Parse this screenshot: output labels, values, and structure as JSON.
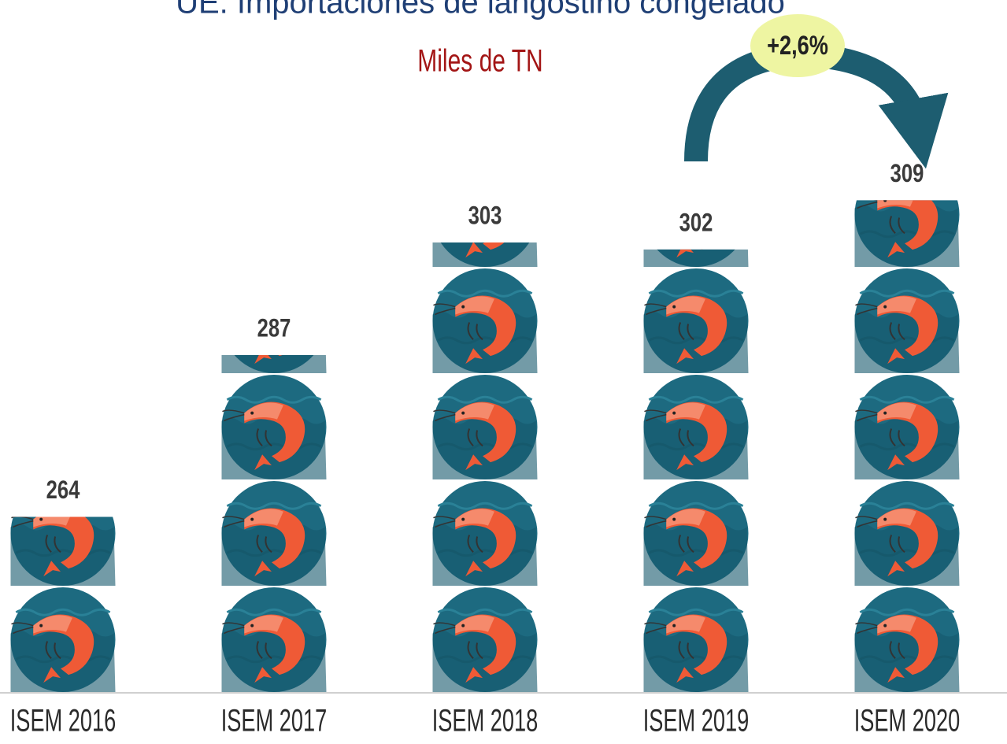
{
  "chart_data": {
    "type": "pictograph",
    "title": "UE. Importaciones de langostino congelado",
    "subtitle": "Miles de TN",
    "categories": [
      "ISEM 2016",
      "ISEM 2017",
      "ISEM 2018",
      "ISEM 2019",
      "ISEM 2020"
    ],
    "values": [
      264,
      287,
      303,
      302,
      309
    ],
    "ylim": [
      239,
      320
    ],
    "annotation": "+2,6%",
    "color": "#1d6a80"
  }
}
